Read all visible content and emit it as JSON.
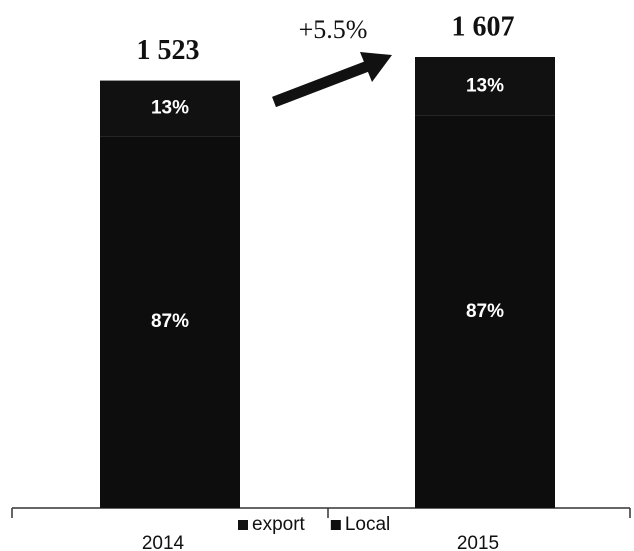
{
  "chart_data": {
    "type": "stacked_bar",
    "categories": [
      "2014",
      "2015"
    ],
    "series": [
      {
        "name": "Local",
        "color": "#0d0d0d",
        "values": [
          87,
          87
        ],
        "value_labels": [
          "87%",
          "87%"
        ]
      },
      {
        "name": "export",
        "color": "#111111",
        "values": [
          13,
          13
        ],
        "value_labels": [
          "13%",
          "13%"
        ]
      }
    ],
    "totals": {
      "values": [
        1523,
        1607
      ],
      "value_labels": [
        "1 523",
        "1 607"
      ]
    },
    "annotation": "+5.5%"
  }
}
